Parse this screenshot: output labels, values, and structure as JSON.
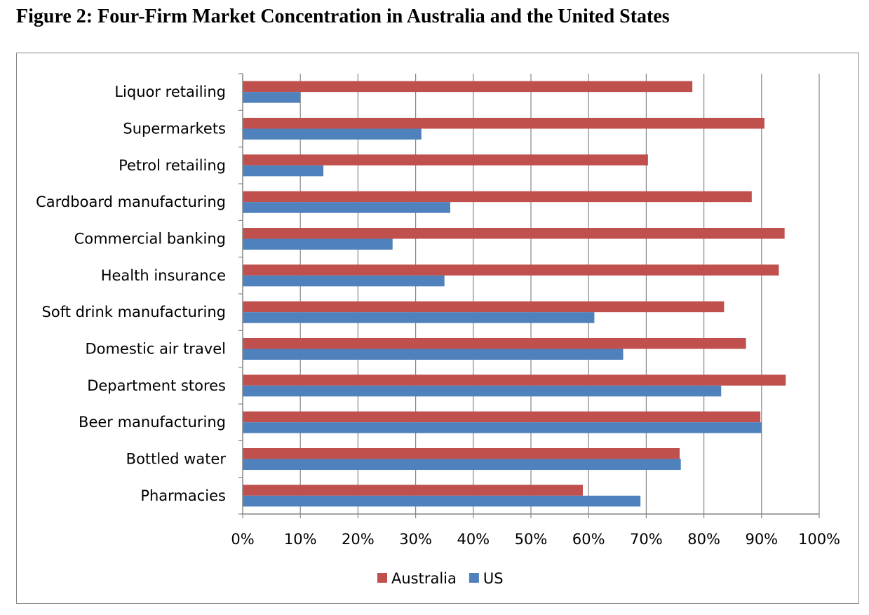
{
  "chart_data": {
    "type": "bar",
    "orientation": "horizontal",
    "title": "Figure 2: Four-Firm Market Concentration in Australia and the United States",
    "categories": [
      "Liquor retailing",
      "Supermarkets",
      "Petrol retailing",
      "Cardboard manufacturing",
      "Commercial banking",
      "Health insurance",
      "Soft drink manufacturing",
      "Domestic air travel",
      "Department stores",
      "Beer manufacturing",
      "Bottled water",
      "Pharmacies"
    ],
    "series": [
      {
        "name": "Australia",
        "color": "#C0504D",
        "values": [
          78,
          90.5,
          70.3,
          88.3,
          94,
          93,
          83.5,
          87.3,
          94.2,
          89.8,
          75.8,
          59
        ]
      },
      {
        "name": "US",
        "color": "#4F81BD",
        "values": [
          10,
          31,
          14,
          36,
          26,
          35,
          61,
          66,
          83,
          90,
          76,
          69
        ]
      }
    ],
    "xlim": [
      0,
      100
    ],
    "x_ticks": [
      "0%",
      "10%",
      "20%",
      "30%",
      "40%",
      "50%",
      "60%",
      "70%",
      "80%",
      "90%",
      "100%"
    ],
    "xlabel": "",
    "ylabel": "",
    "grid": true,
    "legend_position": "bottom"
  }
}
